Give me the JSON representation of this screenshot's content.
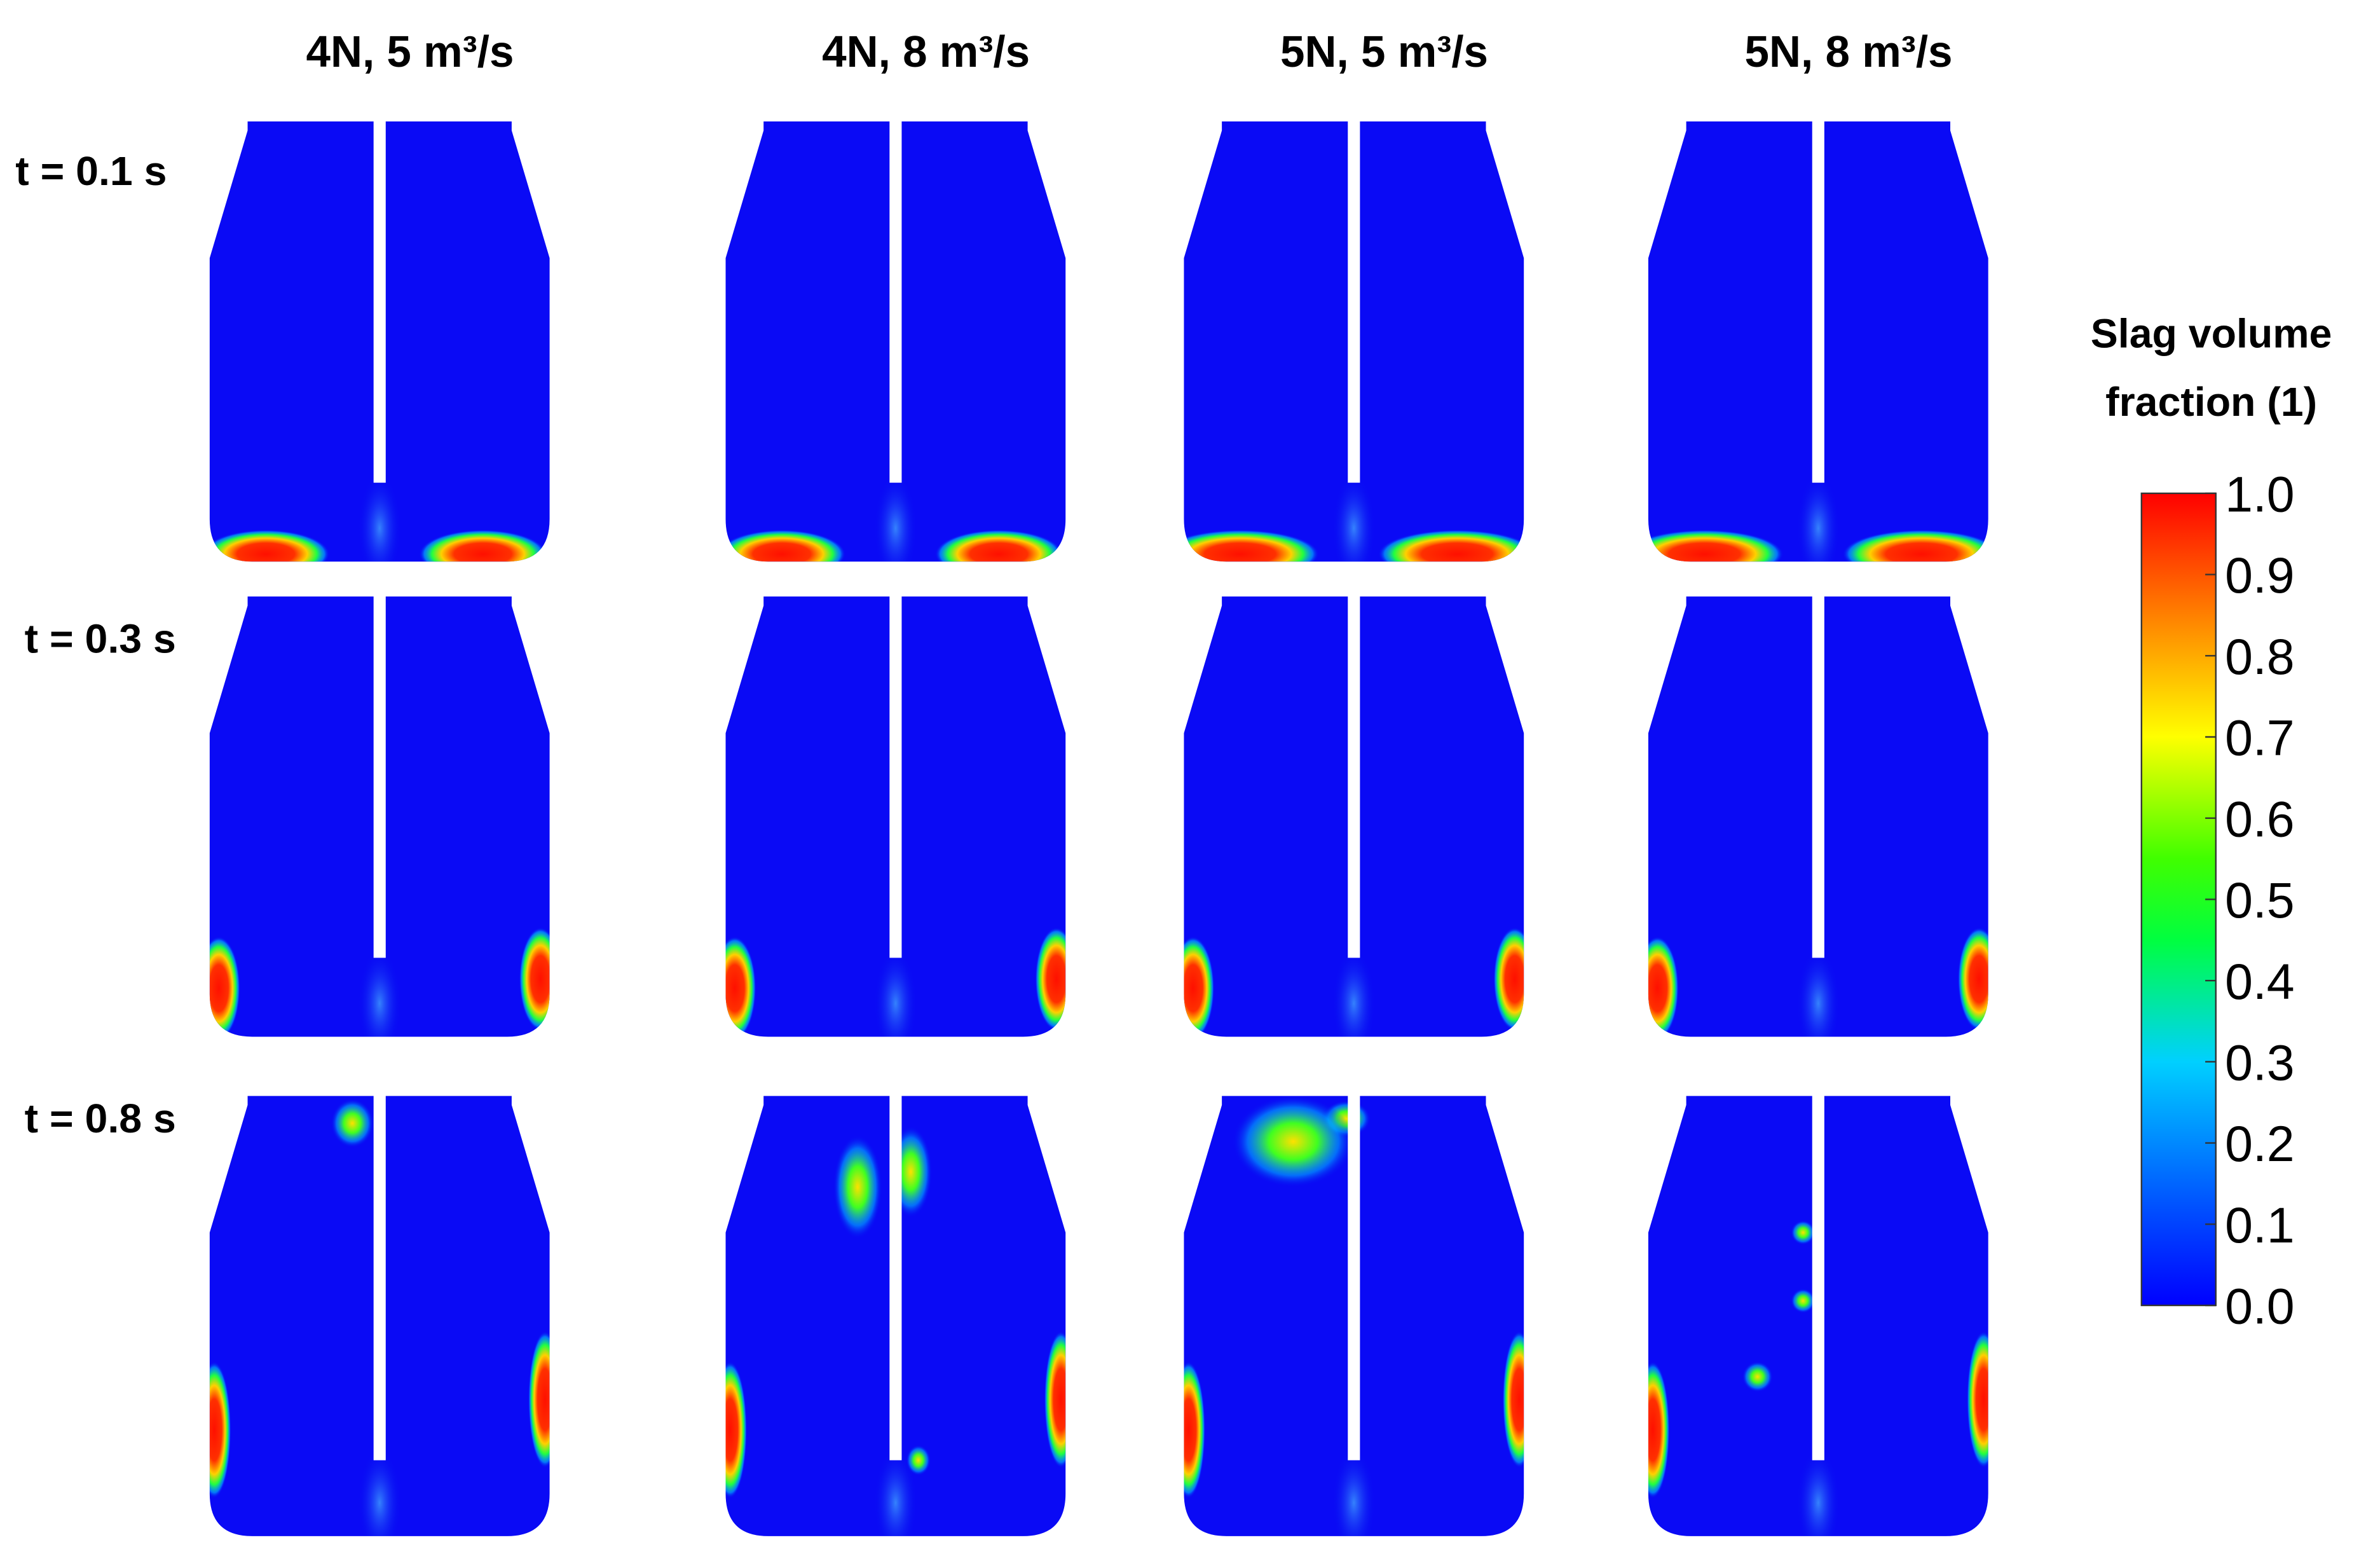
{
  "columns": [
    "4N, 5 m³/s",
    "4N, 8 m³/s",
    "5N, 5 m³/s",
    "5N, 8 m³/s"
  ],
  "rows": [
    "t = 0.1 s",
    "t = 0.3 s",
    "t = 0.8 s"
  ],
  "colorbar": {
    "title_lines": [
      "Slag volume",
      "fraction (1)"
    ],
    "lim": [
      0,
      1
    ],
    "ticks": [
      {
        "value": 0,
        "label": "0.0"
      },
      0.1,
      0.2,
      0.3,
      0.4,
      0.5,
      0.6,
      0.7,
      0.8,
      0.9,
      {
        "value": 1,
        "label": "1.0"
      }
    ]
  }
}
